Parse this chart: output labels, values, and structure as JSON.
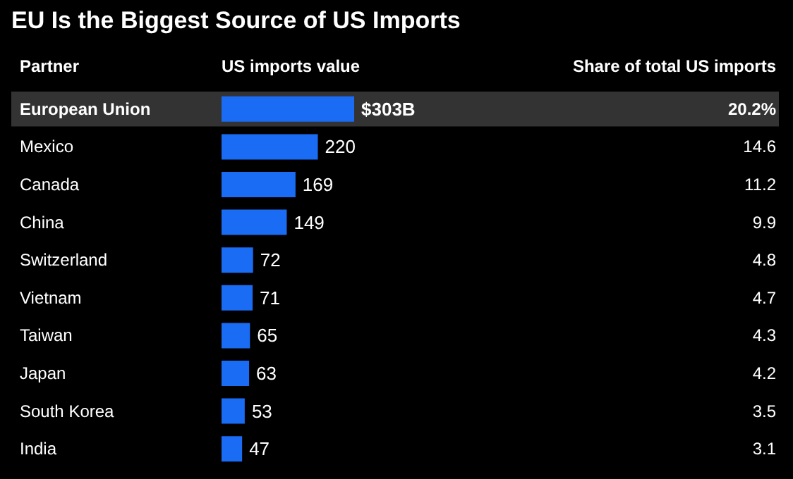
{
  "chart_data": {
    "type": "bar",
    "orientation": "horizontal",
    "title": "EU Is the Biggest Source of US Imports",
    "ylabel": "Partner",
    "xlabel": "US imports value",
    "categories": [
      "European Union",
      "Mexico",
      "Canada",
      "China",
      "Switzerland",
      "Vietnam",
      "Taiwan",
      "Japan",
      "South Korea",
      "India"
    ],
    "values": [
      303,
      220,
      169,
      149,
      72,
      71,
      65,
      63,
      53,
      47
    ],
    "value_labels": [
      "$303B",
      "220",
      "169",
      "149",
      "72",
      "71",
      "65",
      "63",
      "53",
      "47"
    ],
    "color": "#1a6cf5",
    "bands": [
      {
        "axis": "y",
        "from": "European Union",
        "to": "European Union",
        "color": "#333333"
      }
    ],
    "annotations": [
      "Share of total US imports",
      "20.2%",
      "14.6",
      "11.2",
      "9.9",
      "4.8",
      "4.7",
      "4.3",
      "4.2",
      "3.5",
      "3.1"
    ]
  }
}
